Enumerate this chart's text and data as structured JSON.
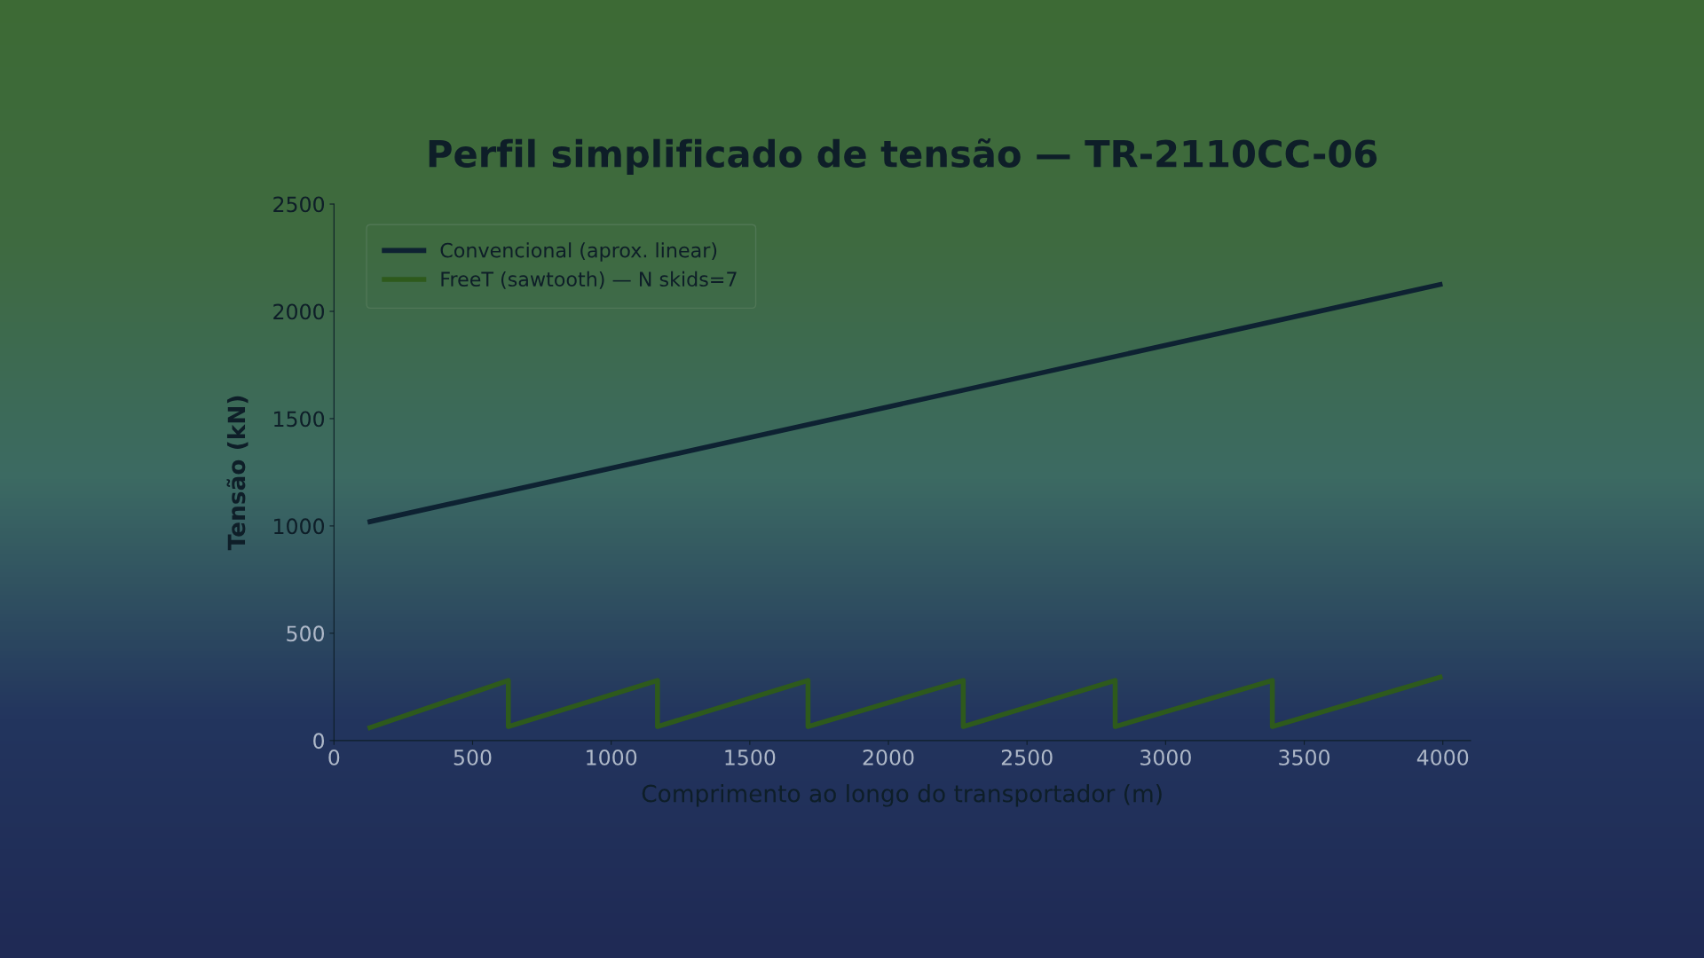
{
  "chart_data": {
    "type": "line",
    "title": "Perfil simplificado de tensão — TR-2110CC-06",
    "xlabel": "Comprimento ao longo do transportador (m)",
    "ylabel": "Tensão (kN)",
    "xlim": [
      0,
      4100
    ],
    "xticks": [
      0,
      500,
      1000,
      1500,
      2000,
      2500,
      3000,
      3500,
      4000
    ],
    "ylim": [
      0,
      2500
    ],
    "yticks": [
      0,
      500,
      1000,
      1500,
      2000,
      2500
    ],
    "grid": false,
    "legend": "top left",
    "line_style": "solid",
    "marker": "none",
    "series": [
      {
        "name": "Convencional (aprox. linear)",
        "color": "#0e2232",
        "x": [
          130,
          3990
        ],
        "values": [
          1020,
          2125
        ]
      },
      {
        "name": "FreeT (sawtooth) — N skids=7",
        "color": "#2e5a1c",
        "x": [
          130,
          629,
          629,
          1167,
          1167,
          1710,
          1710,
          2270,
          2270,
          2818,
          2818,
          3385,
          3385,
          3990
        ],
        "values": [
          60,
          280,
          65,
          280,
          65,
          280,
          65,
          280,
          65,
          280,
          65,
          280,
          65,
          295
        ]
      }
    ]
  }
}
